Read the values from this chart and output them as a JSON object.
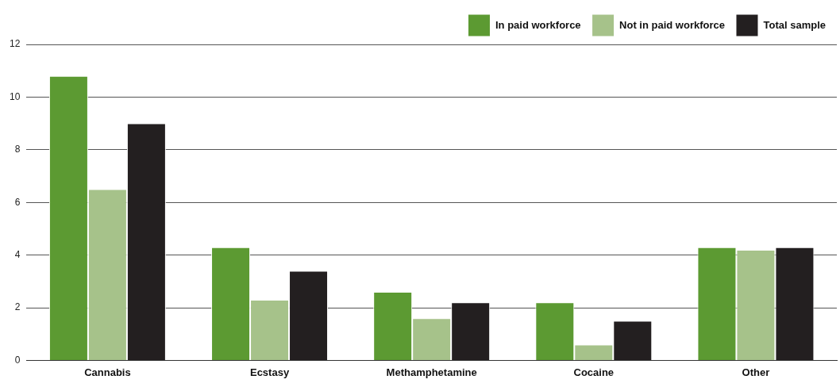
{
  "chart_data": {
    "type": "bar",
    "categories": [
      "Cannabis",
      "Ecstasy",
      "Methamphetamine",
      "Cocaine",
      "Other"
    ],
    "series": [
      {
        "name": "In paid workforce",
        "color": "#5c9a32",
        "values": [
          10.8,
          4.3,
          2.6,
          2.2,
          4.3
        ]
      },
      {
        "name": "Not in paid workforce",
        "color": "#a6c28a",
        "values": [
          6.5,
          2.3,
          1.6,
          0.6,
          4.2
        ]
      },
      {
        "name": "Total sample",
        "color": "#231f20",
        "values": [
          9.0,
          3.4,
          2.2,
          1.5,
          4.3
        ]
      }
    ],
    "ylim": [
      0,
      12
    ],
    "yticks": [
      0,
      2,
      4,
      6,
      8,
      10,
      12
    ],
    "grid": "y",
    "legend": "top right"
  }
}
